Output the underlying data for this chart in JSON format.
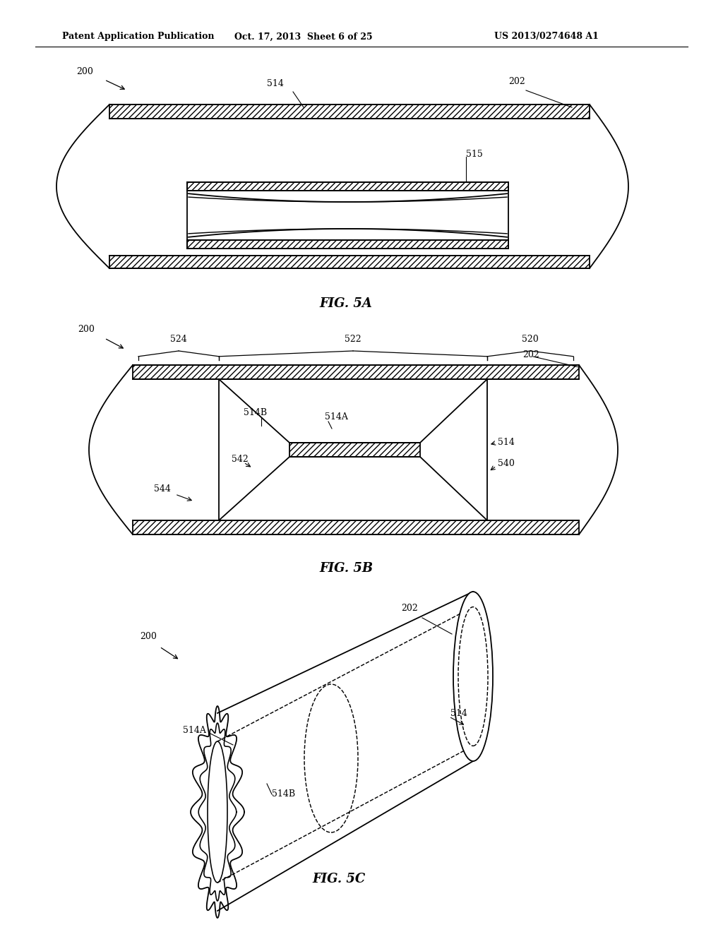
{
  "header_left": "Patent Application Publication",
  "header_mid": "Oct. 17, 2013  Sheet 6 of 25",
  "header_right": "US 2013/0274648 A1",
  "fig5a_label": "FIG. 5A",
  "fig5b_label": "FIG. 5B",
  "fig5c_label": "FIG. 5C",
  "bg_color": "#ffffff",
  "line_color": "#000000"
}
